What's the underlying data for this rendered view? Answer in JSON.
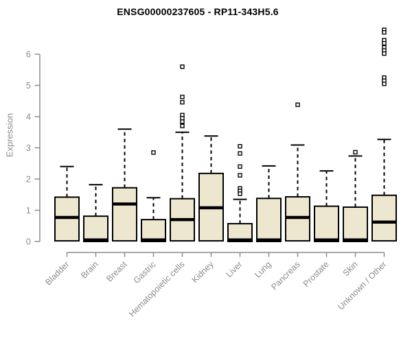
{
  "page": {
    "background": "#ffffff"
  },
  "chart_data": {
    "type": "boxplot",
    "title": "ENSG00000237605 - RP11-343H5.6",
    "ylabel": "Expression",
    "xlabel": "",
    "ylim": [
      0,
      6.9
    ],
    "yticks": [
      0,
      1,
      2,
      3,
      4,
      5,
      6
    ],
    "grid": false,
    "legend": false,
    "x_label_rotation_deg": 45,
    "colors": {
      "box_fill": "#EDE7CF",
      "box_stroke": "#000000",
      "whisker": "#000000",
      "outlier_fill": "#ffffff",
      "axis": "#8C8C8C",
      "title": "#000000"
    },
    "categories": [
      "Bladder",
      "Brain",
      "Breast",
      "Gastric",
      "Hematopoietic cells",
      "Kidney",
      "Liver",
      "Lung",
      "Pancreas",
      "Prostate",
      "Skin",
      "Unknown / Other"
    ],
    "series": [
      {
        "name": "Bladder",
        "whisker_low": 0.02,
        "q1": 0.02,
        "median": 0.77,
        "q3": 1.42,
        "whisker_high": 2.4,
        "outliers": []
      },
      {
        "name": "Brain",
        "whisker_low": 0.0,
        "q1": 0.0,
        "median": 0.05,
        "q3": 0.81,
        "whisker_high": 1.82,
        "outliers": []
      },
      {
        "name": "Breast",
        "whisker_low": 0.02,
        "q1": 0.02,
        "median": 1.2,
        "q3": 1.72,
        "whisker_high": 3.6,
        "outliers": []
      },
      {
        "name": "Gastric",
        "whisker_low": 0.0,
        "q1": 0.0,
        "median": 0.05,
        "q3": 0.7,
        "whisker_high": 1.4,
        "outliers": [
          2.85
        ]
      },
      {
        "name": "Hematopoietic cells",
        "whisker_low": 0.02,
        "q1": 0.02,
        "median": 0.7,
        "q3": 1.37,
        "whisker_high": 3.5,
        "outliers": [
          5.6,
          4.63,
          4.46,
          4.05,
          3.95,
          3.84,
          3.7
        ]
      },
      {
        "name": "Kidney",
        "whisker_low": 0.02,
        "q1": 0.02,
        "median": 1.08,
        "q3": 2.18,
        "whisker_high": 3.38,
        "outliers": []
      },
      {
        "name": "Liver",
        "whisker_low": 0.0,
        "q1": 0.0,
        "median": 0.05,
        "q3": 0.57,
        "whisker_high": 1.35,
        "outliers": [
          3.05,
          2.82,
          2.4,
          2.12,
          1.7,
          1.62,
          1.53
        ]
      },
      {
        "name": "Lung",
        "whisker_low": 0.0,
        "q1": 0.0,
        "median": 0.05,
        "q3": 1.38,
        "whisker_high": 2.42,
        "outliers": []
      },
      {
        "name": "Pancreas",
        "whisker_low": 0.02,
        "q1": 0.02,
        "median": 0.77,
        "q3": 1.43,
        "whisker_high": 3.09,
        "outliers": [
          4.38
        ]
      },
      {
        "name": "Prostate",
        "whisker_low": 0.0,
        "q1": 0.0,
        "median": 0.05,
        "q3": 1.13,
        "whisker_high": 2.26,
        "outliers": []
      },
      {
        "name": "Skin",
        "whisker_low": 0.0,
        "q1": 0.0,
        "median": 0.05,
        "q3": 1.1,
        "whisker_high": 2.74,
        "outliers": [
          2.86
        ]
      },
      {
        "name": "Unknown / Other",
        "whisker_low": 0.02,
        "q1": 0.02,
        "median": 0.62,
        "q3": 1.48,
        "whisker_high": 3.27,
        "outliers": [
          6.78,
          6.7,
          6.45,
          6.35,
          6.22,
          6.12,
          6.02,
          5.25,
          5.15,
          5.05
        ]
      }
    ]
  }
}
